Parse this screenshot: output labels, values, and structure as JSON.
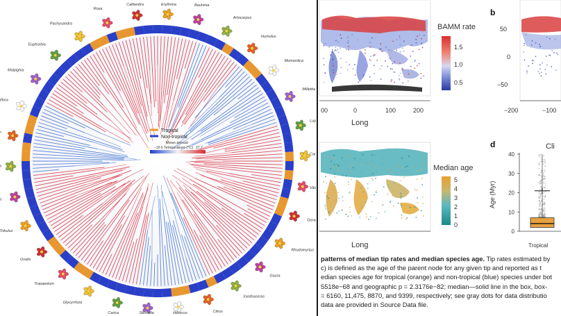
{
  "tree_figure": {
    "plant_labels": [
      "Rosa",
      "Calliandra",
      "Erythrina",
      "Bauhinia",
      "Artocarpus",
      "Humulus",
      "Momordica",
      "Millettia",
      "Lupinus",
      "Caragana",
      "Vitis",
      "Geranium",
      "Rhodomyrtus",
      "Gaura",
      "Xanthoceras",
      "Citrus",
      "Hibiscus",
      "Sterculia",
      "Carica",
      "Glycyrrhiza",
      "Tropaeolum",
      "Oxalis",
      "Tribulus",
      "Parnassia",
      "Clusia",
      "Triadenum",
      "Passiflora",
      "Malpighia",
      "Euphorbia",
      "Pachysandra"
    ],
    "legend": {
      "tropical_label": "Tropical",
      "nontropical_label": "Non-tropical",
      "temp_title_line1": "Mean annual",
      "temp_title_line2": "Temperature (°C)",
      "temp_min": "−16.6",
      "temp_max": "27.7"
    },
    "colors": {
      "tropical": "#e8962f",
      "nontropical": "#2a3fc8",
      "warm": "#d7303f",
      "cold": "#3a6fd0"
    }
  },
  "panel_a": {
    "chart_data": {
      "type": "map",
      "legend_title": "BAMM rate",
      "legend_ticks": [
        "1.5",
        "1.0",
        "0.5"
      ],
      "x_ticks_partial": [
        "00",
        "0",
        "100",
        "200"
      ],
      "xlabel": "Long"
    }
  },
  "panel_b": {
    "label": "b",
    "chart_data": {
      "type": "map",
      "y_ticks": [
        "50",
        "0",
        "−50"
      ],
      "x_ticks": [
        "−200",
        "−100"
      ]
    }
  },
  "panel_c": {
    "chart_data": {
      "type": "map",
      "legend_title": "Median age",
      "legend_ticks": [
        "5",
        "4",
        "3",
        "2",
        "1",
        "0"
      ],
      "xlabel": "Long"
    }
  },
  "panel_d": {
    "label": "d",
    "title_partial": "Cli",
    "chart_data": {
      "type": "box",
      "ylabel": "Age (Myr)",
      "y_ticks": [
        "40",
        "30",
        "20",
        "10",
        "0"
      ],
      "ylim": [
        0,
        40
      ],
      "categories": [
        "Tropical"
      ],
      "median": 4,
      "q1": 2,
      "q3": 7,
      "mean": 21
    }
  },
  "caption": {
    "line1_bold": "patterns of median tip rates and median species age.",
    "line1_rest": " Tip rates estimated by",
    "line2": "c) is defined as the age of the parent node for any given tip and reported as t",
    "line3": "edian species age for tropical (orange) and non-tropical (blue) species under bot",
    "line4": "5518e−68 and geographic p = 2.3176e−82; median—solid line in the box, box-",
    "line5": "= 6160, 11,475, 8870, and 9399, respectively; see gray dots for data distributio",
    "line6": "data are provided in Source Data file."
  }
}
